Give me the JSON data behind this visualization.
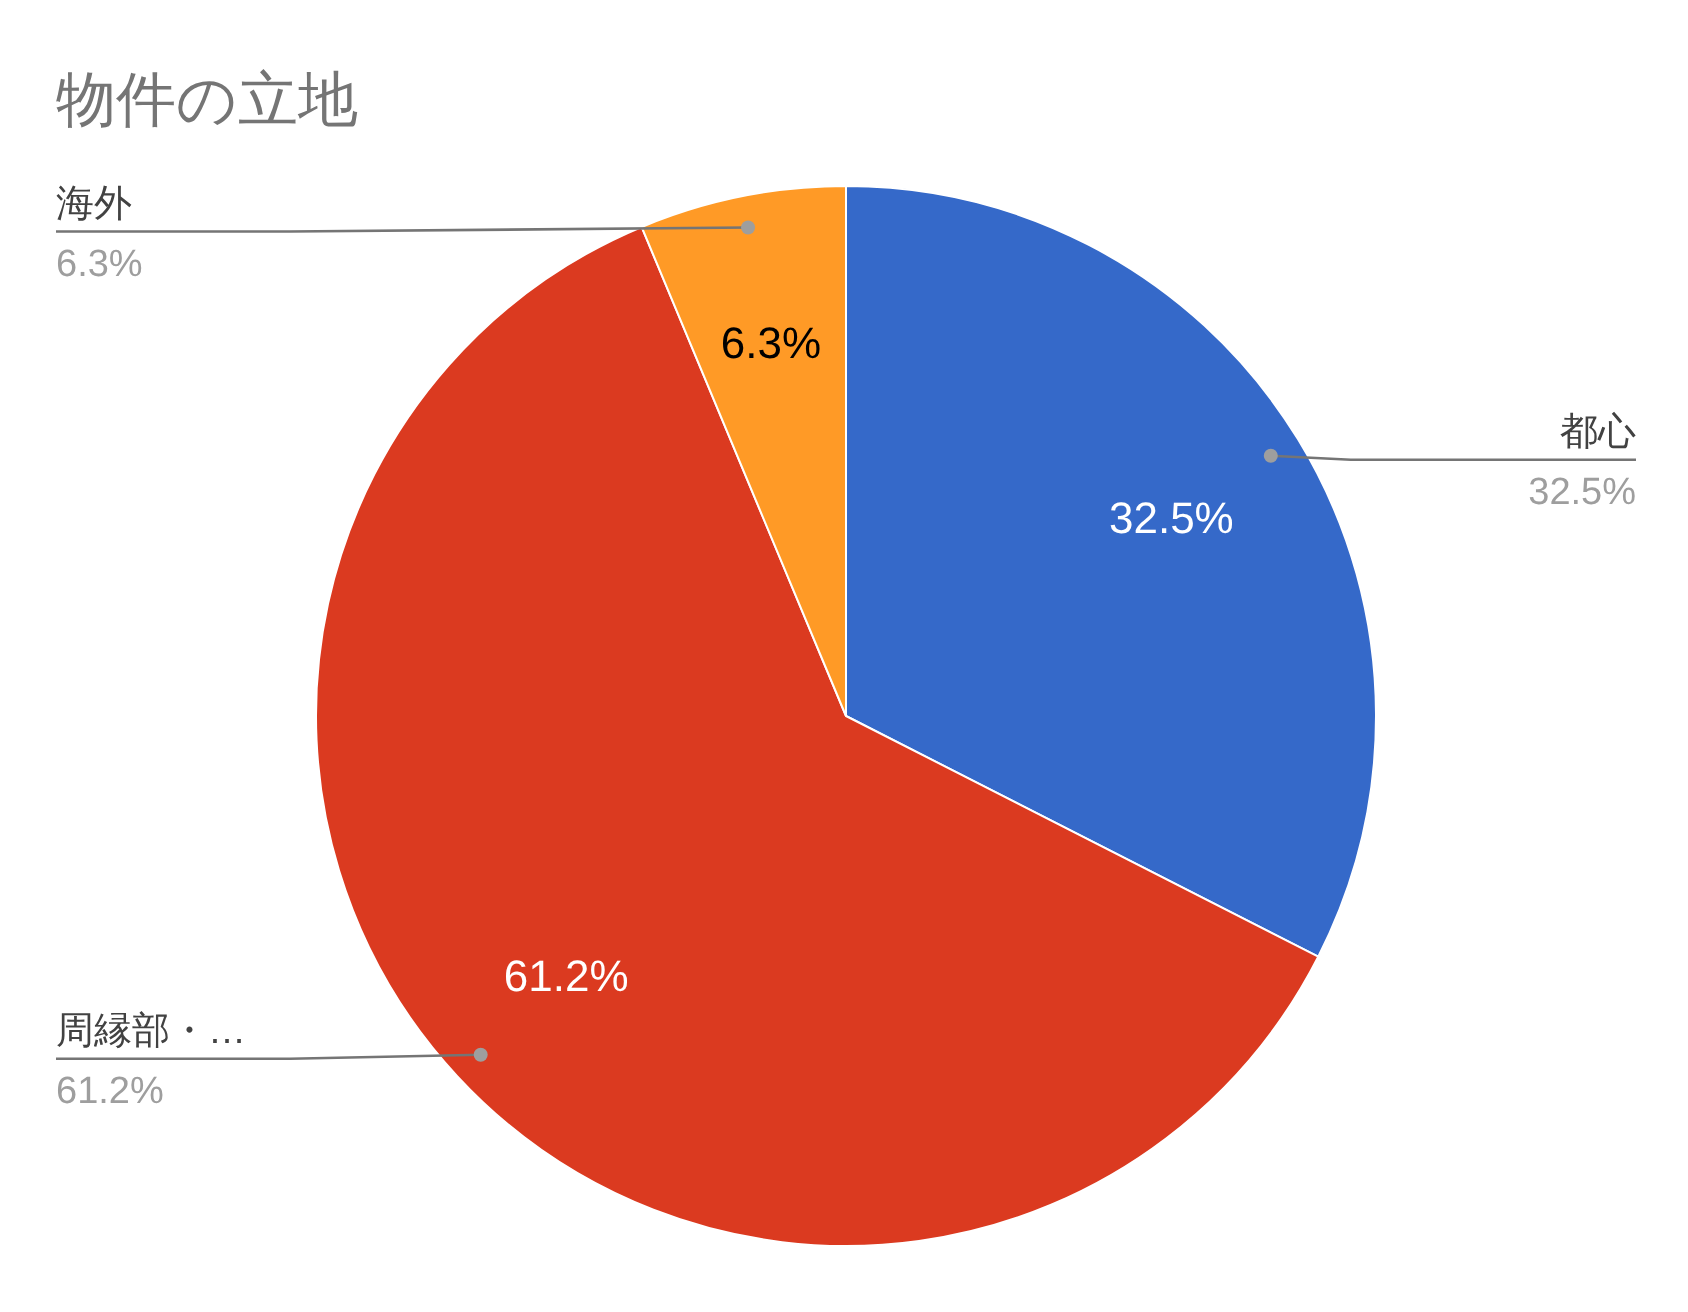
{
  "chart_data": {
    "type": "pie",
    "title": "物件の立地",
    "categories": [
      "都心",
      "周縁部・…",
      "海外"
    ],
    "values": [
      32.5,
      61.2,
      6.3
    ],
    "colors": [
      "#3569c9",
      "#db3a20",
      "#ff9a26"
    ],
    "value_labels": [
      "32.5%",
      "61.2%",
      "6.3%"
    ]
  }
}
